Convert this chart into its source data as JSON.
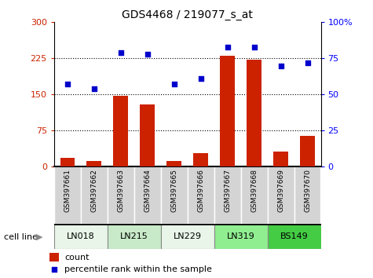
{
  "title": "GDS4468 / 219077_s_at",
  "categories": [
    "GSM397661",
    "GSM397662",
    "GSM397663",
    "GSM397664",
    "GSM397665",
    "GSM397666",
    "GSM397667",
    "GSM397668",
    "GSM397669",
    "GSM397670"
  ],
  "cell_line_groups": [
    {
      "name": "LN018",
      "start": 0,
      "end": 2,
      "color": "#e8f5e8"
    },
    {
      "name": "LN215",
      "start": 2,
      "end": 4,
      "color": "#c8eac8"
    },
    {
      "name": "LN229",
      "start": 4,
      "end": 6,
      "color": "#e8f5e8"
    },
    {
      "name": "LN319",
      "start": 6,
      "end": 8,
      "color": "#90ee90"
    },
    {
      "name": "BS149",
      "start": 8,
      "end": 10,
      "color": "#44cc44"
    }
  ],
  "bar_values": [
    18,
    12,
    148,
    130,
    12,
    28,
    230,
    222,
    32,
    65
  ],
  "scatter_values": [
    57,
    54,
    79,
    78,
    57,
    61,
    83,
    83,
    70,
    72
  ],
  "bar_color": "#cc2200",
  "scatter_color": "#0000cc",
  "left_ylim": [
    0,
    300
  ],
  "right_ylim": [
    0,
    100
  ],
  "left_yticks": [
    0,
    75,
    150,
    225,
    300
  ],
  "right_yticks": [
    0,
    25,
    50,
    75,
    100
  ],
  "left_yticklabels": [
    "0",
    "75",
    "150",
    "225",
    "300"
  ],
  "right_yticklabels": [
    "0",
    "25",
    "50",
    "75",
    "100%"
  ],
  "legend_count_label": "count",
  "legend_pct_label": "percentile rank within the sample",
  "cell_line_label": "cell line"
}
